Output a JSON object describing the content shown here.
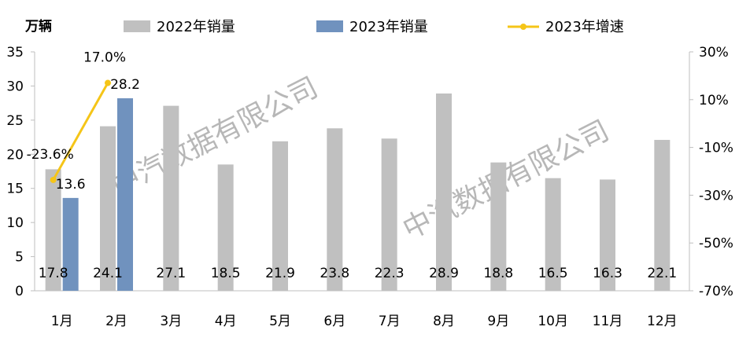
{
  "chart_data": {
    "type": "bar",
    "categories": [
      "1月",
      "2月",
      "3月",
      "4月",
      "5月",
      "6月",
      "7月",
      "8月",
      "9月",
      "10月",
      "11月",
      "12月"
    ],
    "series": [
      {
        "name": "2022年销量",
        "type": "bar",
        "axis": "left",
        "color": "#c0c0c0",
        "values": [
          17.8,
          24.1,
          27.1,
          18.5,
          21.9,
          23.8,
          22.3,
          28.9,
          18.8,
          16.5,
          16.3,
          22.1
        ],
        "labels": [
          "17.8",
          "24.1",
          "27.1",
          "18.5",
          "21.9",
          "23.8",
          "22.3",
          "28.9",
          "18.8",
          "16.5",
          "16.3",
          "22.1"
        ]
      },
      {
        "name": "2023年销量",
        "type": "bar",
        "axis": "left",
        "color": "#7092be",
        "values": [
          13.6,
          28.2,
          null,
          null,
          null,
          null,
          null,
          null,
          null,
          null,
          null,
          null
        ],
        "labels": [
          "13.6",
          "28.2"
        ]
      },
      {
        "name": "2023年增速",
        "type": "line",
        "axis": "right",
        "color": "#f5c518",
        "values": [
          -23.6,
          17.0,
          null,
          null,
          null,
          null,
          null,
          null,
          null,
          null,
          null,
          null
        ],
        "labels": [
          "-23.6%",
          "17.0%"
        ]
      }
    ],
    "ylabel": "万辆",
    "ylim": [
      0,
      35
    ],
    "yticks": [
      "0",
      "5",
      "10",
      "15",
      "20",
      "25",
      "30",
      "35"
    ],
    "y2lim": [
      -70,
      30
    ],
    "y2ticks": [
      "-70%",
      "-50%",
      "-30%",
      "-10%",
      "10%",
      "30%"
    ],
    "legend_position": "top",
    "grid": false,
    "watermark": "中汽数据有限公司"
  }
}
